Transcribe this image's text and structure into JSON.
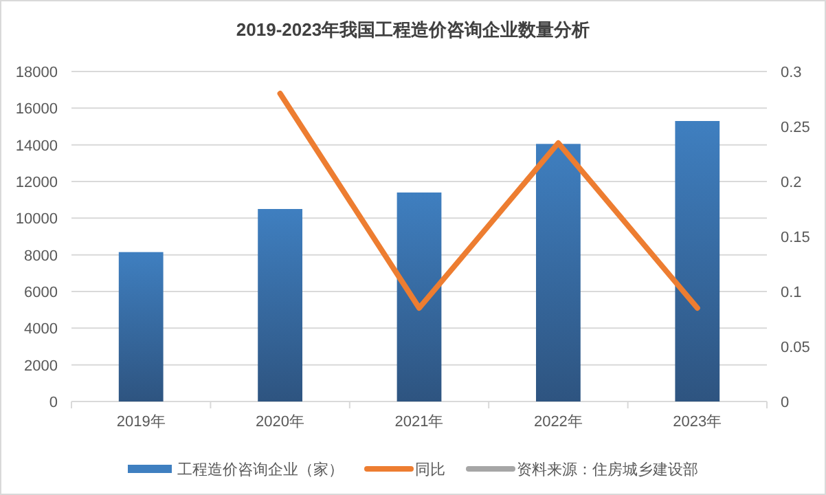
{
  "chart_data": {
    "type": "bar",
    "title": "2019-2023年我国工程造价咨询企业数量分析",
    "categories": [
      "2019年",
      "2020年",
      "2021年",
      "2022年",
      "2023年"
    ],
    "series": [
      {
        "name": "工程造价咨询企业（家）",
        "color": "#3f7fc0",
        "values": [
          8150,
          10500,
          11400,
          14050,
          15300
        ]
      },
      {
        "name": "同比",
        "type": "line",
        "axis": "y2",
        "color": "#ed7d31",
        "values": [
          null,
          0.28,
          0.085,
          0.235,
          0.085
        ]
      }
    ],
    "ylim": [
      0,
      18000
    ],
    "yticks": [
      0,
      2000,
      4000,
      6000,
      8000,
      10000,
      12000,
      14000,
      16000,
      18000
    ],
    "y2lim": [
      0,
      0.3
    ],
    "y2ticks": [
      0,
      0.05,
      0.1,
      0.15,
      0.2,
      0.25,
      0.3
    ],
    "grid": "y",
    "legend": "bottom",
    "marker": "none",
    "annotations": [
      "资料来源：住房城乡建设部"
    ]
  }
}
